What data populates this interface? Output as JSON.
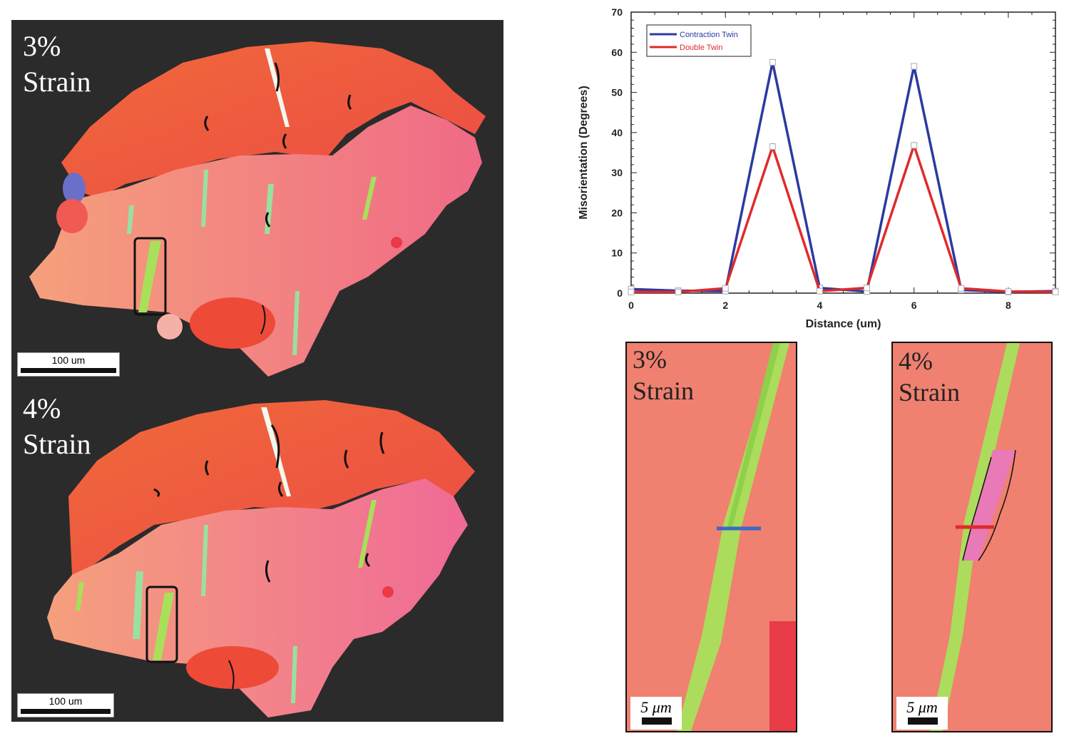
{
  "panels": {
    "top_map": {
      "label": "3%\nStrain",
      "scale": "100 um"
    },
    "bottom_map": {
      "label": "4%\nStrain",
      "scale": "100 um"
    },
    "zoom_left": {
      "label": "3%\nStrain",
      "scale": "5 μm"
    },
    "zoom_right": {
      "label": "4%\nStrain",
      "scale": "5 μm"
    }
  },
  "colors": {
    "background_map": "#2b2b2b",
    "grain_red": "#f05a3c",
    "grain_pink": "#f47d7a",
    "twin_green": "#a8e05a",
    "contraction": "#2b3aa0",
    "double": "#e02a2a"
  },
  "chart_data": {
    "type": "line",
    "xlabel": "Distance (um)",
    "ylabel": "Misorientation (Degrees)",
    "xlim": [
      0,
      9
    ],
    "ylim": [
      0,
      70
    ],
    "xticks": [
      0,
      2,
      4,
      6,
      8
    ],
    "yticks": [
      0,
      10,
      20,
      30,
      40,
      50,
      60,
      70
    ],
    "legend_position": "top-left",
    "series": [
      {
        "name": "Contraction Twin",
        "color": "#2b3aa0",
        "x": [
          0,
          1,
          2,
          3,
          4,
          5,
          6,
          7,
          8,
          9
        ],
        "y": [
          1,
          0.6,
          0.5,
          57.5,
          1.3,
          0.4,
          56.5,
          0.8,
          0.3,
          0.5
        ]
      },
      {
        "name": "Double Twin",
        "color": "#e02a2a",
        "x": [
          0,
          1,
          2,
          3,
          4,
          5,
          6,
          7,
          8,
          9
        ],
        "y": [
          0.3,
          0.3,
          1.2,
          36.5,
          0.5,
          1.3,
          36.8,
          1.2,
          0.4,
          0.3
        ]
      }
    ]
  }
}
